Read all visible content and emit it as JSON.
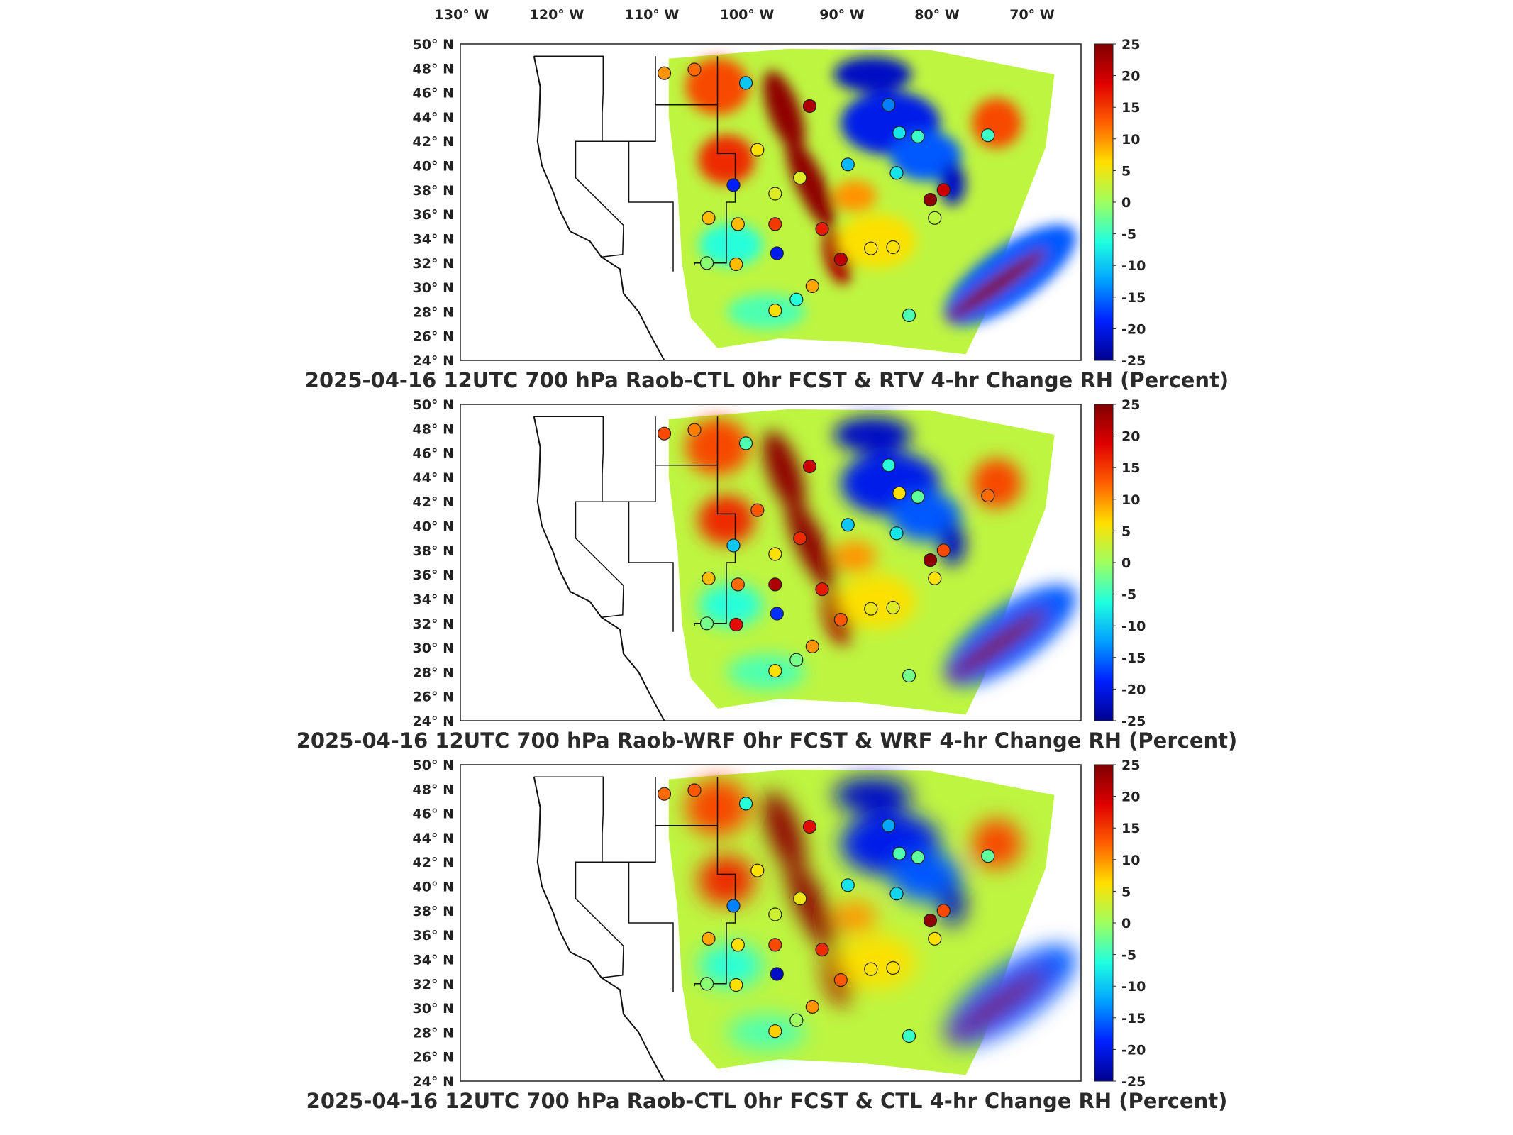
{
  "lon_ticks": [
    "130° W",
    "120° W",
    "110° W",
    "100° W",
    "90° W",
    "80° W",
    "70° W"
  ],
  "lat_ticks": [
    "50° N",
    "48° N",
    "46° N",
    "44° N",
    "42° N",
    "40° N",
    "38° N",
    "36° N",
    "34° N",
    "32° N",
    "30° N",
    "28° N",
    "26° N",
    "24° N"
  ],
  "colorbar": {
    "ticks": [
      "25",
      "20",
      "15",
      "10",
      "5",
      "0",
      "-5",
      "-10",
      "-15",
      "-20",
      "-25"
    ],
    "colormap": [
      "#00008f",
      "#0020ff",
      "#00a0ff",
      "#20ffdf",
      "#9fff60",
      "#ffdf00",
      "#ff6000",
      "#df0000",
      "#800000"
    ]
  },
  "chart_data": [
    {
      "type": "heatmap",
      "title": "2025-04-16 12UTC 700 hPa Raob-CTL 0hr FCST & RTV 4-hr Change RH (Percent)",
      "xlim": [
        -133,
        -63
      ],
      "ylim": [
        24,
        50
      ],
      "clim": [
        -25,
        25
      ],
      "grid": false,
      "colorbar": "right",
      "raob_points": [
        {
          "lon": -110,
          "lat": 47.6,
          "value": 10
        },
        {
          "lon": -106.6,
          "lat": 47.9,
          "value": 12
        },
        {
          "lon": -100.8,
          "lat": 46.8,
          "value": -10
        },
        {
          "lon": -93.6,
          "lat": 44.9,
          "value": 22
        },
        {
          "lon": -84.7,
          "lat": 45.0,
          "value": -14
        },
        {
          "lon": -83.5,
          "lat": 42.7,
          "value": -8
        },
        {
          "lon": -81.4,
          "lat": 42.4,
          "value": -5
        },
        {
          "lon": -73.5,
          "lat": 42.5,
          "value": -5
        },
        {
          "lon": -99.5,
          "lat": 41.3,
          "value": 6
        },
        {
          "lon": -94.7,
          "lat": 39.0,
          "value": 4
        },
        {
          "lon": -89.3,
          "lat": 40.1,
          "value": -11
        },
        {
          "lon": -83.8,
          "lat": 39.4,
          "value": -8
        },
        {
          "lon": -102.2,
          "lat": 38.4,
          "value": -19
        },
        {
          "lon": -97.5,
          "lat": 37.7,
          "value": 4
        },
        {
          "lon": -80.0,
          "lat": 37.2,
          "value": 24
        },
        {
          "lon": -78.5,
          "lat": 38.0,
          "value": 20
        },
        {
          "lon": -105.0,
          "lat": 35.7,
          "value": 8
        },
        {
          "lon": -101.7,
          "lat": 35.2,
          "value": 8
        },
        {
          "lon": -97.5,
          "lat": 35.2,
          "value": 15
        },
        {
          "lon": -92.2,
          "lat": 34.8,
          "value": 17
        },
        {
          "lon": -79.5,
          "lat": 35.7,
          "value": 2
        },
        {
          "lon": -97.3,
          "lat": 32.8,
          "value": -20
        },
        {
          "lon": -90.1,
          "lat": 32.3,
          "value": 21
        },
        {
          "lon": -86.7,
          "lat": 33.2,
          "value": 6
        },
        {
          "lon": -84.2,
          "lat": 33.3,
          "value": 6
        },
        {
          "lon": -101.9,
          "lat": 31.9,
          "value": 8
        },
        {
          "lon": -105.2,
          "lat": 32.0,
          "value": -1
        },
        {
          "lon": -93.3,
          "lat": 30.1,
          "value": 9
        },
        {
          "lon": -95.1,
          "lat": 29.0,
          "value": -6
        },
        {
          "lon": -97.5,
          "lat": 28.1,
          "value": 6
        },
        {
          "lon": -82.4,
          "lat": 27.7,
          "value": -4
        }
      ]
    },
    {
      "type": "heatmap",
      "title": "2025-04-16 12UTC 700 hPa Raob-WRF 0hr FCST & WRF 4-hr Change RH (Percent)",
      "xlim": [
        -133,
        -63
      ],
      "ylim": [
        24,
        50
      ],
      "clim": [
        -25,
        25
      ],
      "grid": false,
      "colorbar": "right",
      "raob_points": [
        {
          "lon": -110,
          "lat": 47.6,
          "value": 14
        },
        {
          "lon": -106.6,
          "lat": 47.9,
          "value": 11
        },
        {
          "lon": -100.8,
          "lat": 46.8,
          "value": -4
        },
        {
          "lon": -93.6,
          "lat": 44.9,
          "value": 20
        },
        {
          "lon": -84.7,
          "lat": 45.0,
          "value": -6
        },
        {
          "lon": -83.5,
          "lat": 42.7,
          "value": 6
        },
        {
          "lon": -81.4,
          "lat": 42.4,
          "value": -3
        },
        {
          "lon": -73.5,
          "lat": 42.5,
          "value": 12
        },
        {
          "lon": -99.5,
          "lat": 41.3,
          "value": 13
        },
        {
          "lon": -94.7,
          "lat": 39.0,
          "value": 16
        },
        {
          "lon": -89.3,
          "lat": 40.1,
          "value": -10
        },
        {
          "lon": -83.8,
          "lat": 39.4,
          "value": -8
        },
        {
          "lon": -102.2,
          "lat": 38.4,
          "value": -10
        },
        {
          "lon": -97.5,
          "lat": 37.7,
          "value": 6
        },
        {
          "lon": -80.0,
          "lat": 37.2,
          "value": 24
        },
        {
          "lon": -78.5,
          "lat": 38.0,
          "value": 14
        },
        {
          "lon": -105.0,
          "lat": 35.7,
          "value": 8
        },
        {
          "lon": -101.7,
          "lat": 35.2,
          "value": 12
        },
        {
          "lon": -97.5,
          "lat": 35.2,
          "value": 22
        },
        {
          "lon": -92.2,
          "lat": 34.8,
          "value": 17
        },
        {
          "lon": -79.5,
          "lat": 35.7,
          "value": 6
        },
        {
          "lon": -97.3,
          "lat": 32.8,
          "value": -18
        },
        {
          "lon": -90.1,
          "lat": 32.3,
          "value": 13
        },
        {
          "lon": -86.7,
          "lat": 33.2,
          "value": 5
        },
        {
          "lon": -84.2,
          "lat": 33.3,
          "value": 4
        },
        {
          "lon": -101.9,
          "lat": 31.9,
          "value": 18
        },
        {
          "lon": -105.2,
          "lat": 32.0,
          "value": -2
        },
        {
          "lon": -93.3,
          "lat": 30.1,
          "value": 10
        },
        {
          "lon": -95.1,
          "lat": 29.0,
          "value": -2
        },
        {
          "lon": -97.5,
          "lat": 28.1,
          "value": 6
        },
        {
          "lon": -82.4,
          "lat": 27.7,
          "value": -2
        }
      ]
    },
    {
      "type": "heatmap",
      "title": "2025-04-16 12UTC 700 hPa Raob-CTL 0hr FCST & CTL 4-hr Change RH (Percent)",
      "xlim": [
        -133,
        -63
      ],
      "ylim": [
        24,
        50
      ],
      "clim": [
        -25,
        25
      ],
      "grid": false,
      "colorbar": "right",
      "raob_points": [
        {
          "lon": -110,
          "lat": 47.6,
          "value": 12
        },
        {
          "lon": -106.6,
          "lat": 47.9,
          "value": 13
        },
        {
          "lon": -100.8,
          "lat": 46.8,
          "value": -6
        },
        {
          "lon": -93.6,
          "lat": 44.9,
          "value": 18
        },
        {
          "lon": -84.7,
          "lat": 45.0,
          "value": -12
        },
        {
          "lon": -83.5,
          "lat": 42.7,
          "value": -4
        },
        {
          "lon": -81.4,
          "lat": 42.4,
          "value": -3
        },
        {
          "lon": -73.5,
          "lat": 42.5,
          "value": -3
        },
        {
          "lon": -99.5,
          "lat": 41.3,
          "value": 6
        },
        {
          "lon": -94.7,
          "lat": 39.0,
          "value": 5
        },
        {
          "lon": -89.3,
          "lat": 40.1,
          "value": -8
        },
        {
          "lon": -83.8,
          "lat": 39.4,
          "value": -9
        },
        {
          "lon": -102.2,
          "lat": 38.4,
          "value": -14
        },
        {
          "lon": -97.5,
          "lat": 37.7,
          "value": 3
        },
        {
          "lon": -80.0,
          "lat": 37.2,
          "value": 24
        },
        {
          "lon": -78.5,
          "lat": 38.0,
          "value": 14
        },
        {
          "lon": -105.0,
          "lat": 35.7,
          "value": 9
        },
        {
          "lon": -101.7,
          "lat": 35.2,
          "value": 6
        },
        {
          "lon": -97.5,
          "lat": 35.2,
          "value": 14
        },
        {
          "lon": -92.2,
          "lat": 34.8,
          "value": 16
        },
        {
          "lon": -79.5,
          "lat": 35.7,
          "value": 6
        },
        {
          "lon": -97.3,
          "lat": 32.8,
          "value": -22
        },
        {
          "lon": -90.1,
          "lat": 32.3,
          "value": 13
        },
        {
          "lon": -86.7,
          "lat": 33.2,
          "value": 6
        },
        {
          "lon": -84.2,
          "lat": 33.3,
          "value": 6
        },
        {
          "lon": -101.9,
          "lat": 31.9,
          "value": 6
        },
        {
          "lon": -105.2,
          "lat": 32.0,
          "value": -1
        },
        {
          "lon": -93.3,
          "lat": 30.1,
          "value": 10
        },
        {
          "lon": -95.1,
          "lat": 29.0,
          "value": 0
        },
        {
          "lon": -97.5,
          "lat": 28.1,
          "value": 7
        },
        {
          "lon": -82.4,
          "lat": 27.7,
          "value": -5
        }
      ]
    }
  ]
}
